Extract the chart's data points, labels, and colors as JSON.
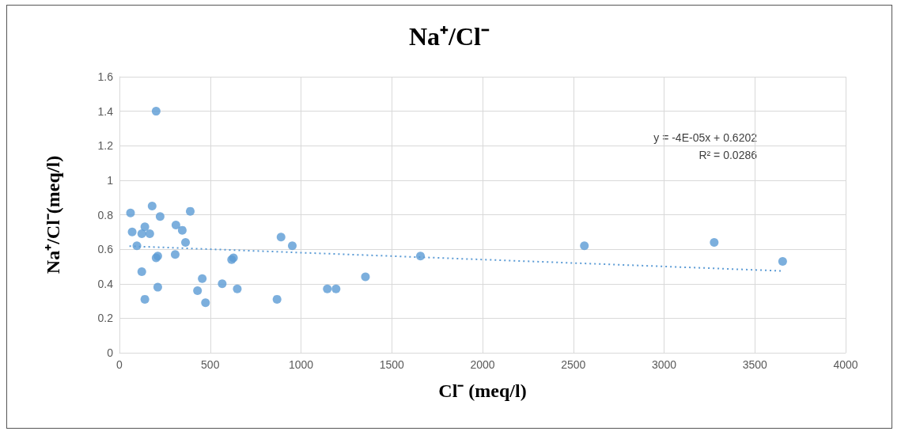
{
  "chart_data": {
    "type": "scatter",
    "title": "Na⁺/Cl⁻",
    "xlabel": "Cl⁻ (meq/l)",
    "ylabel": "Na⁺/Cl⁻(meq/l)",
    "annotations": [
      "y = -4E-05x + 0.6202",
      "R² = 0.0286"
    ],
    "series": [
      {
        "color": "#5b9bd5",
        "marker": "circle",
        "x": [
          202,
          61,
          180,
          70,
          140,
          224,
          390,
          311,
          346,
          364,
          123,
          167,
          96,
          307,
          202,
          211,
          123,
          140,
          211,
          430,
          474,
          456,
          566,
          618,
          628,
          649,
          868,
          890,
          952,
          1145,
          1193,
          1355,
          1658,
          2561,
          3276,
          3653
        ],
        "values": [
          1.4,
          0.81,
          0.85,
          0.7,
          0.73,
          0.79,
          0.82,
          0.74,
          0.71,
          0.64,
          0.69,
          0.69,
          0.62,
          0.57,
          0.55,
          0.56,
          0.47,
          0.31,
          0.38,
          0.36,
          0.29,
          0.43,
          0.4,
          0.54,
          0.55,
          0.37,
          0.31,
          0.67,
          0.62,
          0.37,
          0.37,
          0.44,
          0.56,
          0.62,
          0.64,
          0.53
        ]
      },
      {
        "type": "line",
        "color": "#5b9bd5",
        "line_style": "dotted",
        "marker": "none",
        "x": [
          55,
          3653
        ],
        "values": [
          0.618,
          0.474
        ]
      }
    ],
    "xlim": [
      0,
      4000
    ],
    "xticks": [
      0,
      500,
      1000,
      1500,
      2000,
      2500,
      3000,
      3500,
      4000
    ],
    "ylim": [
      0,
      1.6
    ],
    "yticks": [
      0,
      0.2,
      0.4,
      0.6,
      0.8,
      1,
      1.2,
      1.4,
      1.6
    ],
    "grid": true
  }
}
